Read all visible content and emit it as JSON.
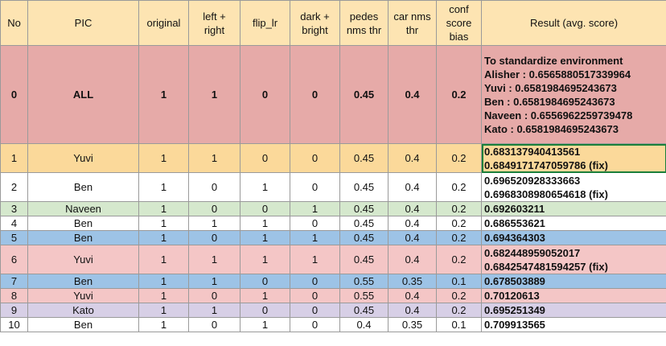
{
  "headers": [
    "No",
    "PIC",
    "original",
    "left +\nright",
    "flip_lr",
    "dark +\nbright",
    "pedes\nnms thr",
    "car nms\nthr",
    "conf\nscore\nbias",
    "Result  (avg. score)"
  ],
  "rows": [
    {
      "no": "0",
      "pic": "ALL",
      "original": "1",
      "left_right": "1",
      "flip_lr": "0",
      "dark_bright": "0",
      "pedes_nms": "0.45",
      "car_nms": "0.4",
      "conf_bias": "0.2",
      "result": [
        "To standardize environment",
        "Alisher : 0.6565880517339964",
        "Yuvi     : 0.6581984695243673",
        "Ben       : 0.6581984695243673",
        "Naveen : 0.6556962259739478",
        "Kato      : 0.6581984695243673"
      ],
      "color": "#e6aaa8"
    },
    {
      "no": "1",
      "pic": "Yuvi",
      "original": "1",
      "left_right": "1",
      "flip_lr": "0",
      "dark_bright": "0",
      "pedes_nms": "0.45",
      "car_nms": "0.4",
      "conf_bias": "0.2",
      "result": [
        "0.683137940413561",
        "0.6849171747059786 (fix)"
      ],
      "color": "#fbd99a"
    },
    {
      "no": "2",
      "pic": "Ben",
      "original": "1",
      "left_right": "0",
      "flip_lr": "1",
      "dark_bright": "0",
      "pedes_nms": "0.45",
      "car_nms": "0.4",
      "conf_bias": "0.2",
      "result": [
        "0.696520928333663",
        "0.6968308980654618 (fix)"
      ],
      "color": "#ffffff"
    },
    {
      "no": "3",
      "pic": "Naveen",
      "original": "1",
      "left_right": "0",
      "flip_lr": "0",
      "dark_bright": "1",
      "pedes_nms": "0.45",
      "car_nms": "0.4",
      "conf_bias": "0.2",
      "result": [
        "0.692603211"
      ],
      "color": "#d5e8cd"
    },
    {
      "no": "4",
      "pic": "Ben",
      "original": "1",
      "left_right": "1",
      "flip_lr": "1",
      "dark_bright": "0",
      "pedes_nms": "0.45",
      "car_nms": "0.4",
      "conf_bias": "0.2",
      "result": [
        "0.686553621"
      ],
      "color": "#ffffff"
    },
    {
      "no": "5",
      "pic": "Ben",
      "original": "1",
      "left_right": "0",
      "flip_lr": "1",
      "dark_bright": "1",
      "pedes_nms": "0.45",
      "car_nms": "0.4",
      "conf_bias": "0.2",
      "result": [
        "0.694364303"
      ],
      "color": "#9dc3e6"
    },
    {
      "no": "6",
      "pic": "Yuvi",
      "original": "1",
      "left_right": "1",
      "flip_lr": "1",
      "dark_bright": "1",
      "pedes_nms": "0.45",
      "car_nms": "0.4",
      "conf_bias": "0.2",
      "result": [
        "0.682448959052017",
        "0.6842547481594257 (fix)"
      ],
      "color": "#f4c6c6"
    },
    {
      "no": "7",
      "pic": "Ben",
      "original": "1",
      "left_right": "1",
      "flip_lr": "0",
      "dark_bright": "0",
      "pedes_nms": "0.55",
      "car_nms": "0.35",
      "conf_bias": "0.1",
      "result": [
        "0.678503889"
      ],
      "color": "#9dc3e6"
    },
    {
      "no": "8",
      "pic": "Yuvi",
      "original": "1",
      "left_right": "0",
      "flip_lr": "1",
      "dark_bright": "0",
      "pedes_nms": "0.55",
      "car_nms": "0.4",
      "conf_bias": "0.2",
      "result": [
        "0.70120613"
      ],
      "color": "#f4c6c6"
    },
    {
      "no": "9",
      "pic": "Kato",
      "original": "1",
      "left_right": "1",
      "flip_lr": "0",
      "dark_bright": "0",
      "pedes_nms": "0.45",
      "car_nms": "0.4",
      "conf_bias": "0.2",
      "result": [
        "0.695251349"
      ],
      "color": "#d7cfe6"
    },
    {
      "no": "10",
      "pic": "Ben",
      "original": "1",
      "left_right": "0",
      "flip_lr": "1",
      "dark_bright": "0",
      "pedes_nms": "0.4",
      "car_nms": "0.35",
      "conf_bias": "0.1",
      "result": [
        "0.709913565"
      ],
      "color": "#ffffff"
    }
  ]
}
